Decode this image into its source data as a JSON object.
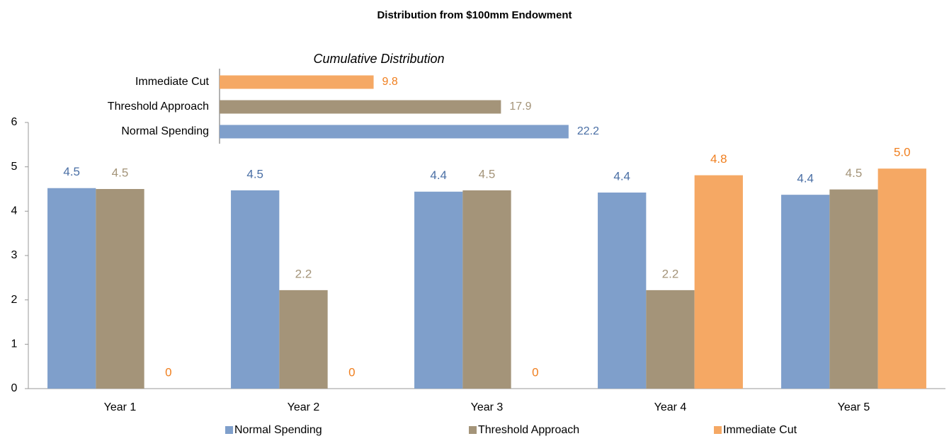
{
  "chart_data": [
    {
      "type": "bar",
      "title": "Distribution from $100mm Endowment",
      "categories": [
        "Year 1",
        "Year 2",
        "Year 3",
        "Year 4",
        "Year 5"
      ],
      "series": [
        {
          "name": "Normal Spending",
          "color": "#7f9fcb",
          "label_color": "#4a6fa5",
          "values": [
            4.52,
            4.47,
            4.44,
            4.42,
            4.37
          ],
          "value_labels": [
            "4.5",
            "4.5",
            "4.4",
            "4.4",
            "4.4"
          ]
        },
        {
          "name": "Threshold Approach",
          "color": "#a49479",
          "label_color": "#a49479",
          "values": [
            4.5,
            2.22,
            4.47,
            2.22,
            4.49
          ],
          "value_labels": [
            "4.5",
            "2.2",
            "4.5",
            "2.2",
            "4.5"
          ]
        },
        {
          "name": "Immediate Cut",
          "color": "#f5a864",
          "label_color": "#f07f1f",
          "values": [
            0,
            0,
            0,
            4.81,
            4.96
          ],
          "value_labels": [
            "0",
            "0",
            "0",
            "4.8",
            "5.0"
          ]
        }
      ],
      "ylim": [
        0,
        6
      ],
      "yticks": [
        0,
        1,
        2,
        3,
        4,
        5,
        6
      ],
      "grid": false,
      "legend": "bottom"
    },
    {
      "type": "hbar",
      "title": "Cumulative Distribution",
      "categories": [
        "Immediate Cut",
        "Threshold Approach",
        "Normal Spending"
      ],
      "values": [
        9.8,
        17.9,
        22.2
      ],
      "colors": [
        "#f5a864",
        "#a49479",
        "#7f9fcb"
      ],
      "label_colors": [
        "#f07f1f",
        "#a49479",
        "#4a6fa5"
      ]
    }
  ]
}
